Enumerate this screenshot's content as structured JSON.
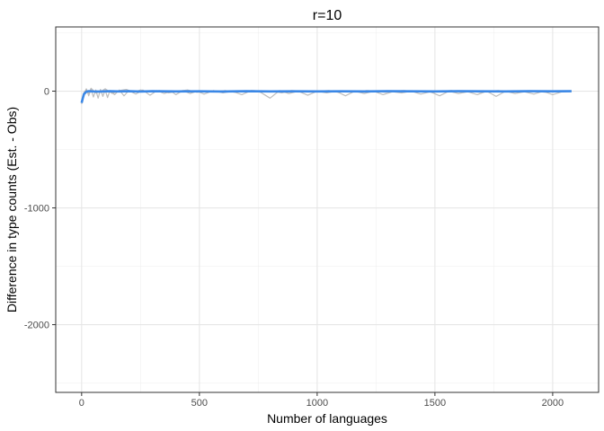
{
  "chart_data": {
    "type": "line",
    "title": "r=10",
    "xlabel": "Number of languages",
    "ylabel": "Difference in type counts (Est. - Obs)",
    "xlim": [
      -110,
      2195
    ],
    "ylim": [
      -2580,
      550
    ],
    "x_ticks": [
      0,
      500,
      1000,
      1500,
      2000
    ],
    "x_tick_labels": [
      "0",
      "500",
      "1000",
      "1500",
      "2000"
    ],
    "y_ticks": [
      0,
      -1000,
      -2000
    ],
    "y_tick_labels": [
      "0",
      "-1000",
      "-2000"
    ],
    "grid": true,
    "series": [
      {
        "style": "individual runs",
        "color": "#b3b3b3",
        "x": [
          0,
          10,
          20,
          30,
          40,
          50,
          60,
          70,
          80,
          90,
          100,
          110,
          120,
          140,
          160,
          180,
          200,
          230,
          260,
          290,
          320,
          350,
          380,
          400,
          430,
          460,
          490,
          520,
          560,
          600,
          640,
          680,
          720,
          760,
          800,
          840,
          880,
          920,
          960,
          1000,
          1040,
          1080,
          1120,
          1160,
          1200,
          1240,
          1280,
          1320,
          1360,
          1400,
          1440,
          1480,
          1520,
          1560,
          1600,
          1640,
          1680,
          1720,
          1760,
          1800,
          1840,
          1880,
          1920,
          1960,
          2000,
          2040,
          2080
        ],
        "y": [
          -110,
          -20,
          20,
          -40,
          15,
          -50,
          10,
          -60,
          15,
          -45,
          10,
          -55,
          5,
          -30,
          10,
          -40,
          5,
          -25,
          10,
          -35,
          5,
          -20,
          0,
          -30,
          5,
          -20,
          0,
          -25,
          5,
          -15,
          0,
          -30,
          5,
          -10,
          -60,
          5,
          -20,
          0,
          -35,
          0,
          -15,
          0,
          -40,
          0,
          -20,
          0,
          -30,
          -5,
          -15,
          0,
          -25,
          -5,
          -40,
          0,
          -20,
          -5,
          -30,
          0,
          -45,
          0,
          -20,
          -5,
          -25,
          0,
          -30,
          -5,
          0
        ]
      },
      {
        "style": "individual runs",
        "color": "#b3b3b3",
        "x": [
          0,
          10,
          20,
          30,
          40,
          60,
          80,
          100,
          130,
          160,
          190,
          220,
          250,
          290,
          330,
          370,
          410,
          450,
          490,
          530,
          570,
          610,
          650,
          690,
          730,
          770,
          810,
          850,
          890,
          930,
          970,
          1010,
          1050,
          1090,
          1130,
          1170,
          1210,
          1250,
          1290,
          1330,
          1370,
          1410,
          1450,
          1490,
          1530,
          1570,
          1610,
          1650,
          1690,
          1730,
          1770,
          1810,
          1850,
          1890,
          1930,
          1970,
          2010,
          2050,
          2080
        ],
        "y": [
          -90,
          -10,
          10,
          -20,
          25,
          -15,
          -5,
          20,
          -20,
          5,
          15,
          -10,
          10,
          -5,
          5,
          -15,
          0,
          10,
          -10,
          0,
          -5,
          5,
          -10,
          0,
          5,
          -5,
          0,
          -15,
          5,
          0,
          -5,
          0,
          5,
          -10,
          0,
          -5,
          5,
          0,
          -10,
          0,
          5,
          -5,
          0,
          -10,
          0,
          5,
          -5,
          0,
          -10,
          0,
          5,
          -5,
          0,
          -5,
          0,
          -10,
          0,
          -5,
          0
        ]
      },
      {
        "style": "mean",
        "color": "#3a87e6",
        "x": [
          0,
          5,
          10,
          20,
          30,
          50,
          80,
          120,
          160,
          200,
          250,
          300,
          400,
          500,
          600,
          700,
          800,
          900,
          1000,
          1100,
          1200,
          1300,
          1400,
          1500,
          1600,
          1700,
          1800,
          1900,
          2000,
          2080
        ],
        "y": [
          -100,
          -60,
          -25,
          -5,
          0,
          -2,
          -3,
          0,
          -2,
          0,
          -3,
          0,
          -2,
          -1,
          -3,
          0,
          -2,
          -1,
          -2,
          -1,
          -2,
          0,
          -1,
          -2,
          0,
          -1,
          -2,
          0,
          -1,
          0
        ]
      }
    ]
  }
}
